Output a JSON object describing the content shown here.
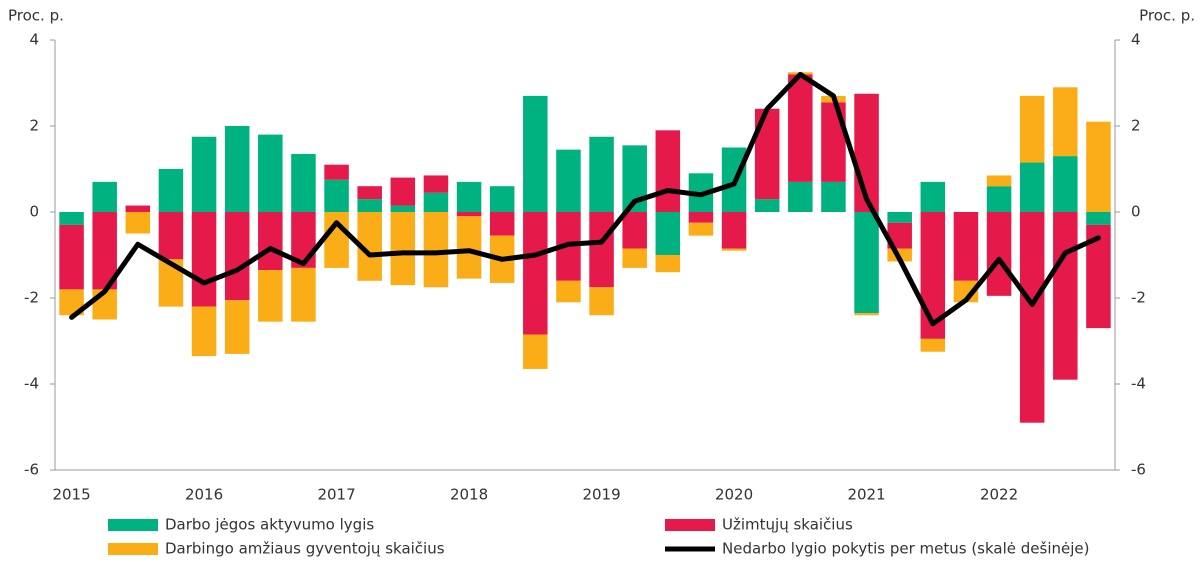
{
  "chart_data": {
    "type": "bar",
    "y_label": "Proc. p.",
    "y2_label": "Proc. p.",
    "categories": [
      "2015",
      null,
      null,
      null,
      "2016",
      null,
      null,
      null,
      "2017",
      null,
      null,
      null,
      "2018",
      null,
      null,
      null,
      "2019",
      null,
      null,
      null,
      "2020",
      null,
      null,
      null,
      "2021",
      null,
      null,
      null,
      "2022",
      null,
      null,
      null
    ],
    "series": [
      {
        "name": "Darbo jėgos aktyvumo lygis",
        "color": "#00b27f",
        "values": [
          -0.3,
          0.7,
          0,
          1.0,
          1.75,
          2.0,
          1.8,
          1.35,
          0.75,
          0.3,
          0.15,
          0.45,
          0.7,
          0.6,
          2.7,
          1.45,
          1.75,
          1.55,
          -1.0,
          0.9,
          1.5,
          0.3,
          0.7,
          0.7,
          -2.35,
          -0.25,
          0.7,
          0,
          0.6,
          1.15,
          1.3,
          -0.3
        ]
      },
      {
        "name": "Užimtųjų skaičius",
        "color": "#e5194a",
        "values": [
          -1.5,
          -1.8,
          0.15,
          -1.1,
          -2.2,
          -2.05,
          -1.35,
          -1.3,
          0.35,
          0.3,
          0.65,
          0.4,
          -0.1,
          -0.55,
          -2.85,
          -1.6,
          -1.75,
          -0.85,
          1.9,
          -0.25,
          -0.85,
          2.1,
          2.5,
          1.85,
          2.75,
          -0.6,
          -2.95,
          -1.6,
          -1.95,
          -4.9,
          -3.9,
          -2.4
        ]
      },
      {
        "name": "Darbingo amžiaus gyventojų skaičius",
        "color": "#fbad18",
        "values": [
          -0.6,
          -0.7,
          -0.5,
          -1.1,
          -1.15,
          -1.25,
          -1.2,
          -1.25,
          -1.3,
          -1.6,
          -1.7,
          -1.75,
          -1.45,
          -1.1,
          -0.8,
          -0.5,
          -0.65,
          -0.45,
          -0.4,
          -0.3,
          -0.05,
          0,
          0.05,
          0.15,
          -0.05,
          -0.3,
          -0.3,
          -0.5,
          0.25,
          1.55,
          1.6,
          2.1
        ]
      },
      {
        "name": "Nedarbo lygio pokytis per metus (skalė dešinėje)",
        "color": "#000000",
        "type": "line",
        "axis": "y2",
        "values": [
          -2.45,
          -1.85,
          -0.75,
          -1.2,
          -1.65,
          -1.35,
          -0.85,
          -1.2,
          -0.25,
          -1.0,
          -0.95,
          -0.95,
          -0.9,
          -1.1,
          -1.0,
          -0.75,
          -0.7,
          0.25,
          0.5,
          0.4,
          0.65,
          2.4,
          3.2,
          2.7,
          0.3,
          -1.1,
          -2.6,
          -2.05,
          -1.1,
          -2.15,
          -0.95,
          -0.6
        ]
      }
    ],
    "ylim": [
      -6,
      4
    ],
    "yticks": [
      -6,
      -4,
      -2,
      0,
      2,
      4
    ],
    "y2lim": [
      -6,
      4
    ],
    "y2ticks": [
      -6,
      -4,
      -2,
      0,
      2,
      4
    ],
    "stacked": true,
    "legend": "bottom"
  }
}
